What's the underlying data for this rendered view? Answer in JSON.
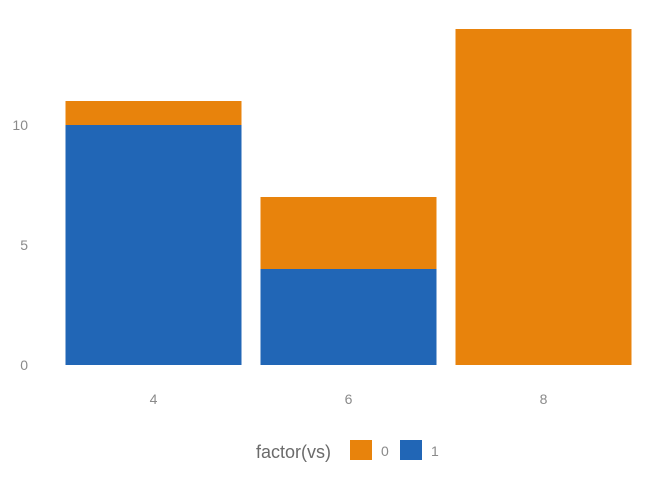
{
  "chart_data": {
    "type": "bar",
    "stacked": true,
    "categories": [
      "4",
      "6",
      "8"
    ],
    "series": [
      {
        "name": "0",
        "values": [
          1,
          3,
          14
        ],
        "color": "#E8830C"
      },
      {
        "name": "1",
        "values": [
          10,
          4,
          0
        ],
        "color": "#2166B6"
      }
    ],
    "stack_order_bottom_to_top": [
      "1",
      "0"
    ],
    "title": "",
    "xlabel": "",
    "ylabel": "",
    "ylim": [
      0,
      14
    ],
    "yticks": [
      0,
      5,
      10
    ],
    "grid": false,
    "legend": {
      "title": "factor(vs)",
      "placement": "bottom",
      "entries": [
        "0",
        "1"
      ]
    }
  }
}
